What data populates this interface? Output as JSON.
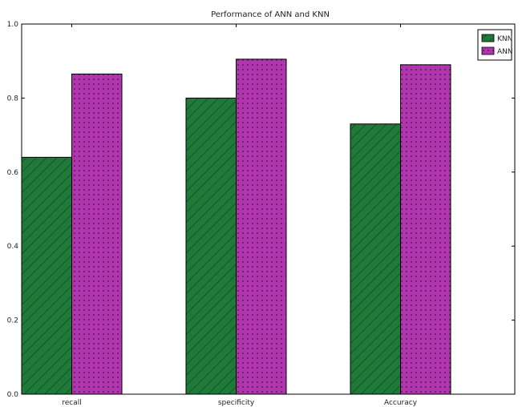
{
  "chart_data": {
    "type": "bar",
    "title": "Performance of ANN and KNN",
    "xlabel": "",
    "ylabel": "",
    "categories": [
      "recall",
      "specificity",
      "Accuracy"
    ],
    "series": [
      {
        "name": "KNN",
        "values": [
          0.64,
          0.8,
          0.73
        ],
        "color": "#1f7a3a",
        "pattern": "diagonal-hatch"
      },
      {
        "name": "ANN",
        "values": [
          0.865,
          0.905,
          0.89
        ],
        "color": "#b036ad",
        "pattern": "dots"
      }
    ],
    "ylim": [
      0,
      1.0
    ],
    "yticks": [
      0.0,
      0.2,
      0.4,
      0.6,
      0.8,
      1.0
    ],
    "ytick_labels": [
      "0.0",
      "0.2",
      "0.4",
      "0.6",
      "0.8",
      "1.0"
    ],
    "grid": false,
    "legend_position": "top-right"
  }
}
